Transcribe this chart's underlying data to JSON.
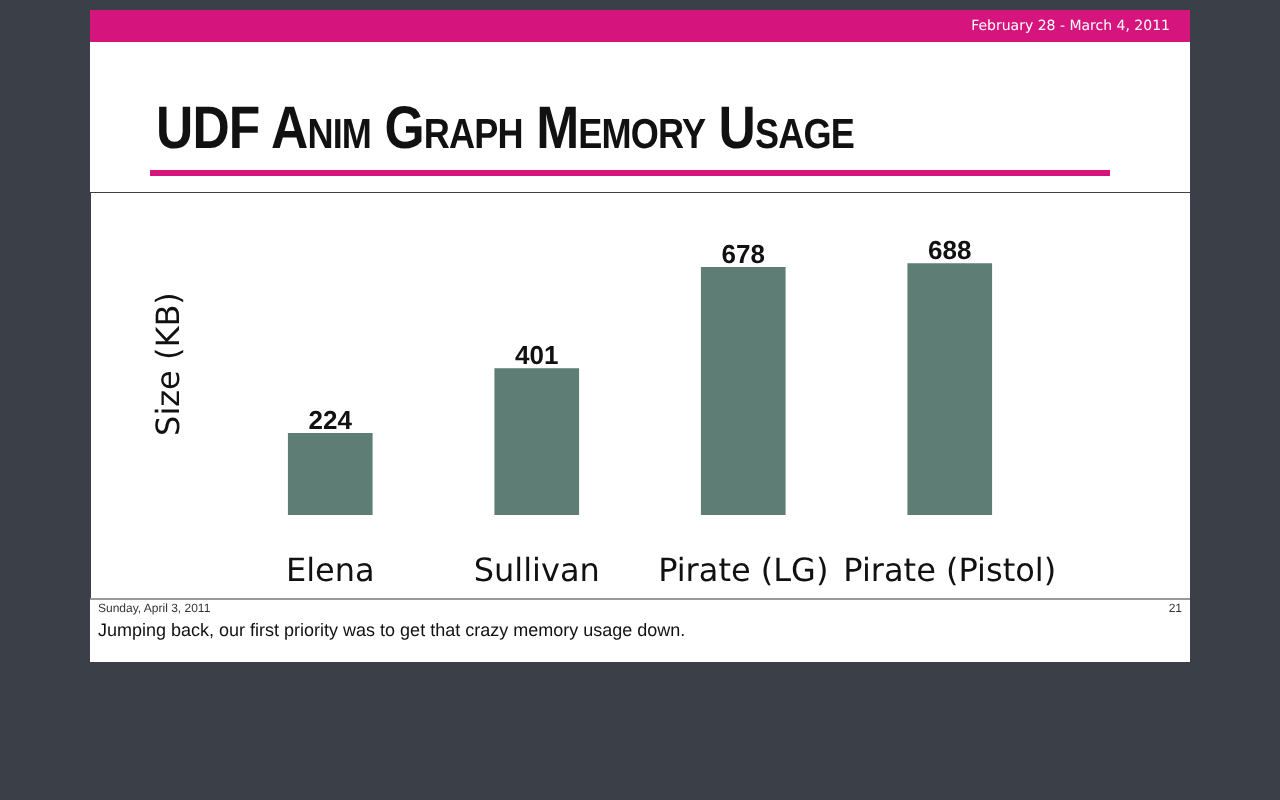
{
  "chart_data": {
    "type": "bar",
    "title": "UDF Anim Graph Memory Usage",
    "ylabel": "Size (KB)",
    "categories": [
      "Elena",
      "Sullivan",
      "Pirate (LG)",
      "Pirate (Pistol)"
    ],
    "values": [
      224,
      401,
      678,
      688
    ],
    "color": "#5e7d75",
    "data_labels": true,
    "annotations": [
      "February 28 - March 4, 2011",
      "Sunday, April 3, 2011",
      "21",
      "Jumping back, our first priority was to get that crazy memory usage down."
    ]
  }
}
